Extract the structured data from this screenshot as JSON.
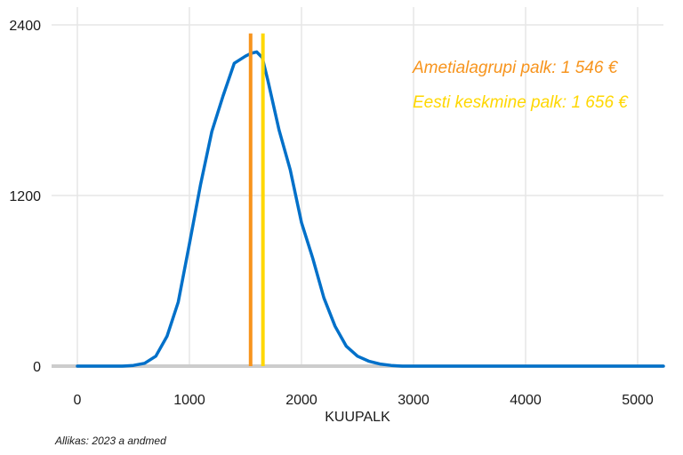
{
  "chart_data": {
    "type": "line",
    "xlabel": "KUUPALK",
    "ylabel": "",
    "xlim": [
      -230,
      5230
    ],
    "ylim": [
      0,
      2400
    ],
    "x_ticks": [
      0,
      1000,
      2000,
      3000,
      4000,
      5000
    ],
    "y_ticks": [
      0,
      1200,
      2400
    ],
    "x_tick_labels": [
      "0",
      "1000",
      "2000",
      "3000",
      "4000",
      "5000"
    ],
    "y_tick_labels": [
      "0",
      "1200",
      "2400"
    ],
    "grid": true,
    "series": [
      {
        "color": "#0070c9",
        "x": [
          0,
          200,
          400,
          500,
          600,
          700,
          800,
          900,
          1000,
          1100,
          1200,
          1300,
          1400,
          1500,
          1550,
          1600,
          1650,
          1700,
          1800,
          1900,
          2000,
          2100,
          2200,
          2300,
          2400,
          2500,
          2600,
          2700,
          2800,
          2900,
          3000,
          3500,
          4000,
          4500,
          5230
        ],
        "y": [
          0,
          0,
          0,
          5,
          20,
          70,
          210,
          450,
          860,
          1280,
          1650,
          1900,
          2130,
          2180,
          2200,
          2210,
          2170,
          2010,
          1660,
          1380,
          1010,
          760,
          480,
          280,
          140,
          70,
          35,
          15,
          5,
          0,
          0,
          0,
          0,
          0,
          0
        ]
      }
    ],
    "vlines": [
      {
        "x": 1546,
        "color": "#f7941d",
        "ymax": 2340
      },
      {
        "x": 1656,
        "color": "#ffd700",
        "ymax": 2340
      }
    ],
    "annotations": [
      {
        "text": "Ametialagrupi palk: 1 546 €",
        "color": "#f7941d"
      },
      {
        "text": "Eesti keskmine palk: 1 656 €",
        "color": "#ffd700"
      }
    ]
  },
  "caption": "Allikas: 2023 a andmed"
}
